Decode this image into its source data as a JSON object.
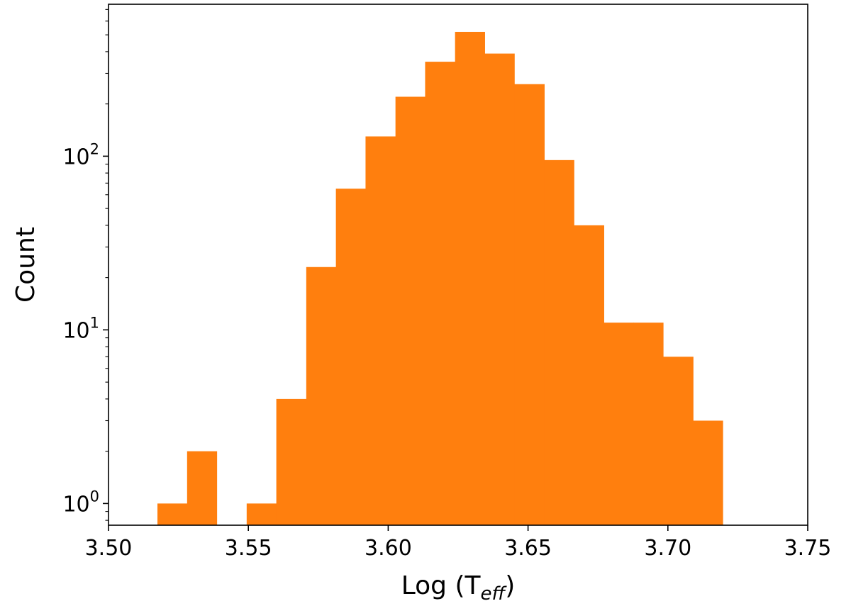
{
  "chart_data": {
    "type": "bar",
    "title": "",
    "xlabel": {
      "base": "Log (T",
      "subscript": "eff",
      "close": ")"
    },
    "ylabel": "Count",
    "xscale": "linear",
    "yscale": "log",
    "xlim": [
      3.5,
      3.75
    ],
    "ylim": [
      0.75,
      750
    ],
    "grid": false,
    "legend": "none",
    "bar_color": "#ff7f0e",
    "x_ticks": [
      {
        "value": 3.5,
        "label": "3.50"
      },
      {
        "value": 3.55,
        "label": "3.55"
      },
      {
        "value": 3.6,
        "label": "3.60"
      },
      {
        "value": 3.65,
        "label": "3.65"
      },
      {
        "value": 3.7,
        "label": "3.70"
      },
      {
        "value": 3.75,
        "label": "3.75"
      }
    ],
    "y_ticks": [
      {
        "value": 1,
        "base": "10",
        "exp": "0"
      },
      {
        "value": 10,
        "base": "10",
        "exp": "1"
      },
      {
        "value": 100,
        "base": "10",
        "exp": "2"
      }
    ],
    "bins": [
      {
        "x0": 3.5175,
        "x1": 3.5281,
        "count": 1
      },
      {
        "x0": 3.5281,
        "x1": 3.5387,
        "count": 2
      },
      {
        "x0": 3.5387,
        "x1": 3.5494,
        "count": 0
      },
      {
        "x0": 3.5494,
        "x1": 3.56,
        "count": 1
      },
      {
        "x0": 3.56,
        "x1": 3.5707,
        "count": 4
      },
      {
        "x0": 3.5707,
        "x1": 3.5813,
        "count": 23
      },
      {
        "x0": 3.5813,
        "x1": 3.5919,
        "count": 65
      },
      {
        "x0": 3.5919,
        "x1": 3.6026,
        "count": 130
      },
      {
        "x0": 3.6026,
        "x1": 3.6132,
        "count": 220
      },
      {
        "x0": 3.6132,
        "x1": 3.6239,
        "count": 350
      },
      {
        "x0": 3.6239,
        "x1": 3.6345,
        "count": 520
      },
      {
        "x0": 3.6345,
        "x1": 3.6451,
        "count": 390
      },
      {
        "x0": 3.6451,
        "x1": 3.6558,
        "count": 260
      },
      {
        "x0": 3.6558,
        "x1": 3.6664,
        "count": 95
      },
      {
        "x0": 3.6664,
        "x1": 3.6771,
        "count": 40
      },
      {
        "x0": 3.6771,
        "x1": 3.6877,
        "count": 11
      },
      {
        "x0": 3.6877,
        "x1": 3.6983,
        "count": 11
      },
      {
        "x0": 3.6983,
        "x1": 3.709,
        "count": 7
      },
      {
        "x0": 3.709,
        "x1": 3.7196,
        "count": 3
      }
    ]
  }
}
